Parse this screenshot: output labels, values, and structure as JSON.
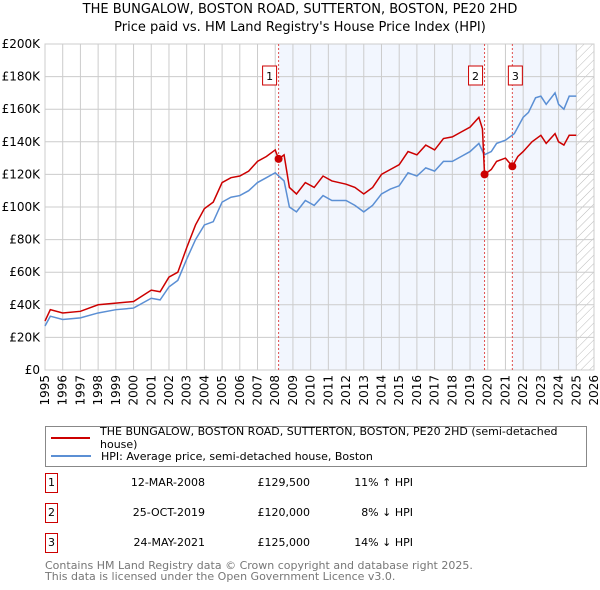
{
  "chart_data": {
    "type": "line",
    "title": "THE BUNGALOW, BOSTON ROAD, SUTTERTON, BOSTON, PE20 2HD",
    "subtitle": "Price paid vs. HM Land Registry's House Price Index (HPI)",
    "xlim": [
      1995,
      2026
    ],
    "ylim": [
      0,
      200000
    ],
    "yticks": [
      {
        "v": 0,
        "label": "£0"
      },
      {
        "v": 20000,
        "label": "£20K"
      },
      {
        "v": 40000,
        "label": "£40K"
      },
      {
        "v": 60000,
        "label": "£60K"
      },
      {
        "v": 80000,
        "label": "£80K"
      },
      {
        "v": 100000,
        "label": "£100K"
      },
      {
        "v": 120000,
        "label": "£120K"
      },
      {
        "v": 140000,
        "label": "£140K"
      },
      {
        "v": 160000,
        "label": "£160K"
      },
      {
        "v": 180000,
        "label": "£180K"
      },
      {
        "v": 200000,
        "label": "£200K"
      }
    ],
    "xticks": [
      "1995",
      "1996",
      "1997",
      "1998",
      "1999",
      "2000",
      "2001",
      "2002",
      "2003",
      "2004",
      "2005",
      "2006",
      "2007",
      "2008",
      "2009",
      "2010",
      "2011",
      "2012",
      "2013",
      "2014",
      "2015",
      "2016",
      "2017",
      "2018",
      "2019",
      "2020",
      "2021",
      "2022",
      "2023",
      "2024",
      "2025",
      "2026"
    ],
    "grid": true,
    "shaded_ranges": [
      [
        2008.19,
        2019.82
      ],
      [
        2021.39,
        2025.0
      ]
    ],
    "hatched_range": [
      2025.0,
      2026
    ],
    "series": [
      {
        "name": "THE BUNGALOW, BOSTON ROAD, SUTTERTON, BOSTON, PE20 2HD (semi-detached house)",
        "color": "#cc0000",
        "x": [
          1995,
          1995.3,
          1996,
          1997,
          1998,
          1999,
          2000,
          2001,
          2001.5,
          2002,
          2002.5,
          2003,
          2003.5,
          2004,
          2004.5,
          2005,
          2005.5,
          2006,
          2006.5,
          2007,
          2007.5,
          2008,
          2008.19,
          2008.5,
          2008.8,
          2009.2,
          2009.7,
          2010.2,
          2010.7,
          2011.2,
          2012,
          2012.5,
          2013,
          2013.5,
          2014,
          2014.5,
          2015,
          2015.5,
          2016,
          2016.5,
          2017,
          2017.5,
          2018,
          2018.5,
          2019,
          2019.5,
          2019.7,
          2019.82,
          2020.2,
          2020.5,
          2021,
          2021.39,
          2021.7,
          2022,
          2022.5,
          2023,
          2023.3,
          2023.8,
          2024,
          2024.3,
          2024.6,
          2025
        ],
        "y": [
          30,
          37,
          35,
          36,
          40,
          41,
          42,
          49,
          48,
          57,
          60,
          75,
          89,
          99,
          103,
          115,
          118,
          119,
          122,
          128,
          131,
          135,
          129.5,
          132,
          112,
          108,
          115,
          112,
          119,
          116,
          114,
          112,
          108,
          112,
          120,
          123,
          126,
          134,
          132,
          138,
          135,
          142,
          143,
          146,
          149,
          155,
          148,
          120,
          123,
          128,
          130,
          125,
          131,
          134,
          140,
          144,
          139,
          145,
          140,
          138,
          144,
          144
        ]
      },
      {
        "name": "HPI: Average price, semi-detached house, Boston",
        "color": "#5b8fd4",
        "x": [
          1995,
          1995.3,
          1996,
          1997,
          1998,
          1999,
          2000,
          2001,
          2001.5,
          2002,
          2002.5,
          2003,
          2003.5,
          2004,
          2004.5,
          2005,
          2005.5,
          2006,
          2006.5,
          2007,
          2007.5,
          2008,
          2008.5,
          2008.8,
          2009.2,
          2009.7,
          2010.2,
          2010.7,
          2011.2,
          2012,
          2012.5,
          2013,
          2013.5,
          2014,
          2014.5,
          2015,
          2015.5,
          2016,
          2016.5,
          2017,
          2017.5,
          2018,
          2018.5,
          2019,
          2019.5,
          2019.8,
          2020.2,
          2020.5,
          2021,
          2021.5,
          2022,
          2022.3,
          2022.7,
          2023,
          2023.3,
          2023.8,
          2024,
          2024.3,
          2024.6,
          2025
        ],
        "y": [
          27,
          33,
          31,
          32,
          35,
          37,
          38,
          44,
          43,
          51,
          55,
          68,
          80,
          89,
          91,
          103,
          106,
          107,
          110,
          115,
          118,
          121,
          116,
          100,
          97,
          104,
          101,
          107,
          104,
          104,
          101,
          97,
          101,
          108,
          111,
          113,
          121,
          119,
          124,
          122,
          128,
          128,
          131,
          134,
          139,
          132,
          134,
          139,
          141,
          145,
          155,
          158,
          167,
          168,
          163,
          170,
          163,
          160,
          168,
          168
        ]
      }
    ],
    "y_units": "thousands GBP",
    "sales": [
      {
        "num": "1",
        "x": 2008.19,
        "y": 129.5,
        "date": "12-MAR-2008",
        "price": "£129,500",
        "hpi": "11% ↑ HPI"
      },
      {
        "num": "2",
        "x": 2019.82,
        "y": 120,
        "date": "25-OCT-2019",
        "price": "£120,000",
        "hpi": "8% ↓ HPI"
      },
      {
        "num": "3",
        "x": 2021.39,
        "y": 125,
        "date": "24-MAY-2021",
        "price": "£125,000",
        "hpi": "14% ↓ HPI"
      }
    ]
  },
  "footer": {
    "line1": "Contains HM Land Registry data © Crown copyright and database right 2025.",
    "line2": "This data is licensed under the Open Government Licence v3.0."
  }
}
